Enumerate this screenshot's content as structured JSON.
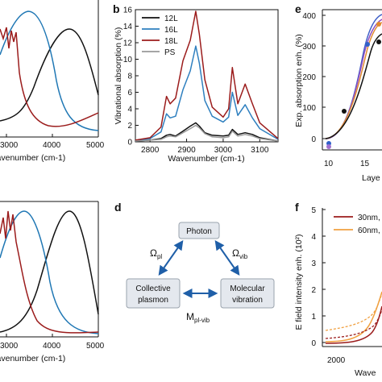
{
  "panel_a": {
    "xlabel": "Wavenumber (cm-1)",
    "xticks": [
      "3000",
      "4000",
      "5000"
    ],
    "colors": [
      "#111111",
      "#1f77b4",
      "#9b1c1c"
    ]
  },
  "panel_b": {
    "letter": "b",
    "ylabel": "Vibrational absorption (%)",
    "xlabel": "Wavenumber (cm-1)",
    "yticks": [
      "0",
      "2",
      "4",
      "6",
      "8",
      "10",
      "12",
      "14",
      "16"
    ],
    "xticks": [
      "2800",
      "2900",
      "3000",
      "3100"
    ],
    "legend": [
      {
        "label": "12L",
        "color": "#111111"
      },
      {
        "label": "16L",
        "color": "#2e7fbf"
      },
      {
        "label": "18L",
        "color": "#9b1c1c"
      },
      {
        "label": "PS",
        "color": "#9a9a9a"
      }
    ]
  },
  "panel_c": {
    "xlabel": "Wavenumber (cm-1)",
    "xticks": [
      "3000",
      "4000",
      "5000"
    ]
  },
  "panel_d": {
    "letter": "d",
    "nodes": {
      "photon": "Photon",
      "plasmon_line1": "Collective",
      "plasmon_line2": "plasmon",
      "vibration_line1": "Molecular",
      "vibration_line2": "vibration"
    },
    "couplings": {
      "pl": "Ω",
      "pl_sub": "pl",
      "vib": "Ω",
      "vib_sub": "vib",
      "plvib": "M",
      "plvib_sub": "pl-vib"
    }
  },
  "panel_e": {
    "letter": "e",
    "ylabel": "Exp. absorption enh. (%)",
    "xlabel": "Laye",
    "yticks": [
      "0",
      "100",
      "200",
      "300",
      "400"
    ],
    "xticks": [
      "10",
      "15"
    ]
  },
  "panel_f": {
    "letter": "f",
    "ylabel": "E field intensity enh. (10²)",
    "xlabel": "Wave",
    "yticks": [
      "0",
      "1",
      "2",
      "3",
      "4",
      "5"
    ],
    "xticks": [
      "2000"
    ],
    "legend": [
      {
        "label": "30nm,",
        "color": "#9b1c1c"
      },
      {
        "label": "60nm,",
        "color": "#f0a040"
      }
    ]
  },
  "chart_data": [
    {
      "panel": "b",
      "type": "line",
      "xlim": [
        2760,
        3150
      ],
      "ylim": [
        0,
        16
      ],
      "series": [
        {
          "name": "12L",
          "color": "#111111",
          "x": [
            2760,
            2800,
            2830,
            2845,
            2855,
            2870,
            2890,
            2910,
            2925,
            2935,
            2950,
            2970,
            3000,
            3015,
            3025,
            3040,
            3060,
            3080,
            3100,
            3150
          ],
          "y": [
            0.1,
            0.2,
            0.4,
            0.8,
            0.9,
            0.7,
            1.3,
            1.9,
            2.3,
            1.9,
            1.1,
            0.8,
            0.7,
            0.8,
            1.5,
            0.9,
            1.1,
            0.9,
            0.5,
            0.1
          ]
        },
        {
          "name": "16L",
          "color": "#2e7fbf",
          "x": [
            2760,
            2800,
            2830,
            2845,
            2855,
            2870,
            2890,
            2910,
            2925,
            2935,
            2950,
            2970,
            3000,
            3015,
            3025,
            3040,
            3060,
            3080,
            3100,
            3150
          ],
          "y": [
            0.1,
            0.4,
            1.2,
            3.4,
            2.9,
            3.1,
            6.3,
            8.6,
            11.6,
            9.5,
            5.0,
            3.1,
            2.4,
            3.0,
            6.0,
            3.2,
            4.5,
            2.9,
            1.6,
            0.3
          ]
        },
        {
          "name": "18L",
          "color": "#9b1c1c",
          "x": [
            2760,
            2800,
            2830,
            2845,
            2855,
            2870,
            2890,
            2910,
            2925,
            2935,
            2950,
            2970,
            3000,
            3015,
            3025,
            3040,
            3060,
            3080,
            3100,
            3150
          ],
          "y": [
            0.2,
            0.5,
            1.8,
            5.5,
            4.6,
            5.3,
            9.8,
            12.3,
            15.8,
            13.0,
            7.5,
            4.2,
            3.0,
            4.0,
            9.0,
            4.6,
            7.0,
            4.6,
            2.3,
            0.4
          ]
        },
        {
          "name": "PS",
          "color": "#9a9a9a",
          "x": [
            2760,
            2800,
            2830,
            2845,
            2855,
            2870,
            2890,
            2910,
            2925,
            2935,
            2950,
            2970,
            3000,
            3015,
            3025,
            3040,
            3060,
            3080,
            3100,
            3150
          ],
          "y": [
            0.1,
            0.2,
            0.3,
            0.6,
            0.7,
            0.6,
            1.1,
            1.6,
            2.0,
            1.7,
            1.0,
            0.6,
            0.5,
            0.6,
            1.3,
            0.7,
            0.9,
            0.7,
            0.4,
            0.1
          ]
        }
      ]
    }
  ]
}
